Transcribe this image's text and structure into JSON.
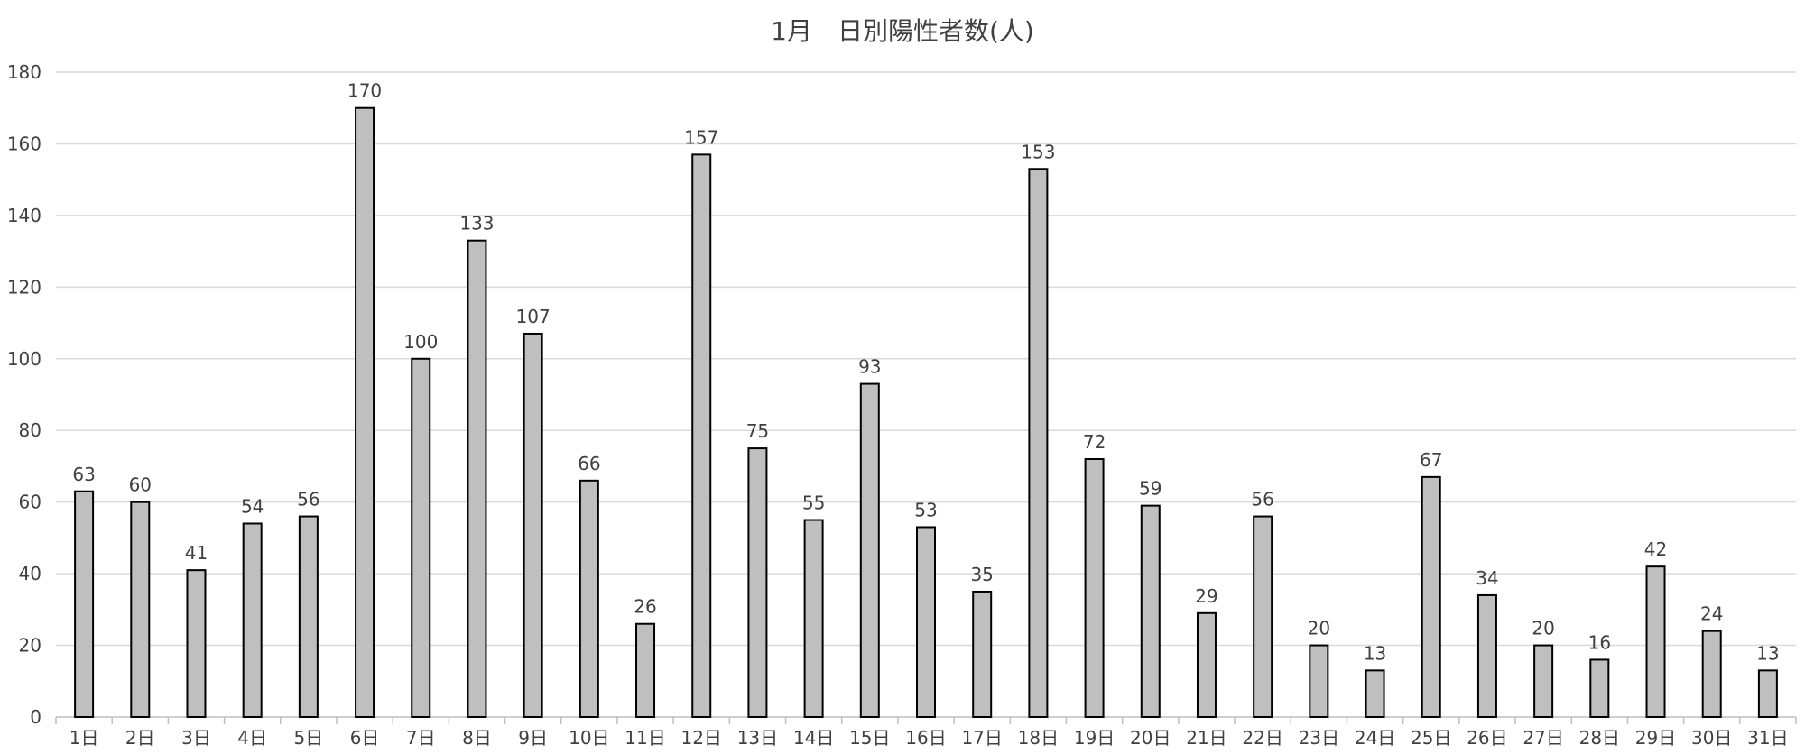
{
  "chart_data": {
    "type": "bar",
    "title": "1月　日別陽性者数(人)",
    "xlabel": "",
    "ylabel": "",
    "ylim": [
      0,
      180
    ],
    "yticks": [
      0,
      20,
      40,
      60,
      80,
      100,
      120,
      140,
      160,
      180
    ],
    "grid": true,
    "legend": "none",
    "categories": [
      "1日",
      "2日",
      "3日",
      "4日",
      "5日",
      "6日",
      "7日",
      "8日",
      "9日",
      "10日",
      "11日",
      "12日",
      "13日",
      "14日",
      "15日",
      "16日",
      "17日",
      "18日",
      "19日",
      "20日",
      "21日",
      "22日",
      "23日",
      "24日",
      "25日",
      "26日",
      "27日",
      "28日",
      "29日",
      "30日",
      "31日"
    ],
    "values": [
      63,
      60,
      41,
      54,
      56,
      170,
      100,
      133,
      107,
      66,
      26,
      157,
      75,
      55,
      93,
      53,
      35,
      153,
      72,
      59,
      29,
      56,
      20,
      13,
      67,
      34,
      20,
      16,
      42,
      24,
      13
    ],
    "colors": {
      "bar_fill": "#bfbfbf",
      "bar_stroke": "#000000",
      "grid": "#d9d9d9",
      "text": "#404040"
    }
  }
}
